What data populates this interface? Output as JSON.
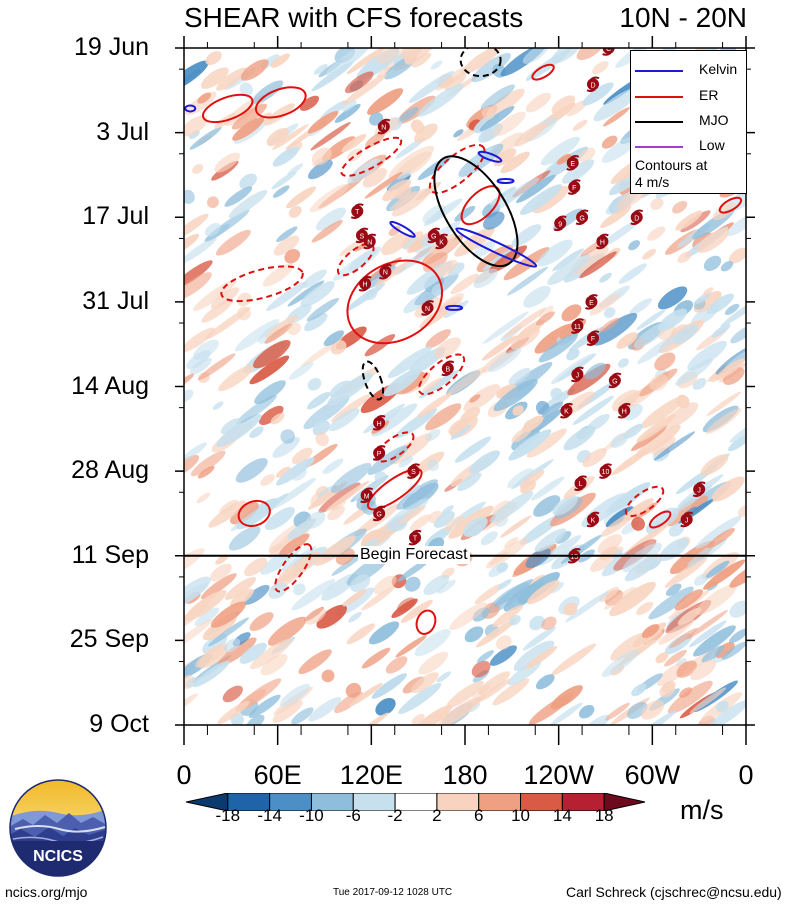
{
  "titles": {
    "left": "SHEAR with CFS forecasts",
    "right": "10N - 20N"
  },
  "chart_data": {
    "type": "heatmap",
    "title": "SHEAR with CFS forecasts",
    "subtitle": "10N - 20N",
    "x_axis": {
      "labels": [
        "0",
        "60E",
        "120E",
        "180",
        "120W",
        "60W",
        "0"
      ],
      "lon_range": [
        0,
        360
      ]
    },
    "y_axis": {
      "labels": [
        "19 Jun",
        "3 Jul",
        "17 Jul",
        "31 Jul",
        "14 Aug",
        "28 Aug",
        "11 Sep",
        "25 Sep",
        "9 Oct"
      ],
      "day_range": [
        0,
        112
      ]
    },
    "forecast_line": {
      "day": 84,
      "label": "Begin Forecast"
    },
    "colorbar": {
      "levels": [
        "-18",
        "-14",
        "-10",
        "-6",
        "-2",
        "2",
        "6",
        "10",
        "14",
        "18"
      ],
      "colors": [
        "#0b3a6e",
        "#1f64a8",
        "#4b8fc6",
        "#8fbedc",
        "#c6e0ee",
        "#ffffff",
        "#f8d4c0",
        "#ef9f82",
        "#d95b46",
        "#b52133",
        "#6d0a1e"
      ],
      "units": "m/s"
    },
    "legend": [
      {
        "name": "Kelvin",
        "color": "#1a1ad8"
      },
      {
        "name": "ER",
        "color": "#e01010"
      },
      {
        "name": "MJO",
        "color": "#000000"
      },
      {
        "name": "Low",
        "color": "#a040c8"
      }
    ],
    "legend_note": [
      "Contours at",
      "4 m/s"
    ],
    "storms": [
      {
        "id": "C",
        "lon": 272,
        "day": 0
      },
      {
        "id": "D",
        "lon": 262,
        "day": 6
      },
      {
        "id": "N",
        "lon": 128,
        "day": 13
      },
      {
        "id": "E",
        "lon": 249,
        "day": 19
      },
      {
        "id": "F",
        "lon": 250,
        "day": 23
      },
      {
        "id": "T",
        "lon": 111,
        "day": 27
      },
      {
        "id": "G",
        "lon": 255,
        "day": 28
      },
      {
        "id": "9",
        "lon": 241,
        "day": 29
      },
      {
        "id": "D",
        "lon": 290,
        "day": 28
      },
      {
        "id": "S",
        "lon": 114,
        "day": 31
      },
      {
        "id": "N",
        "lon": 119,
        "day": 32
      },
      {
        "id": "K",
        "lon": 165,
        "day": 32
      },
      {
        "id": "G",
        "lon": 160,
        "day": 31
      },
      {
        "id": "H",
        "lon": 268,
        "day": 32
      },
      {
        "id": "N",
        "lon": 129,
        "day": 37
      },
      {
        "id": "H",
        "lon": 116,
        "day": 39
      },
      {
        "id": "E",
        "lon": 261,
        "day": 42
      },
      {
        "id": "N",
        "lon": 156,
        "day": 43
      },
      {
        "id": "11",
        "lon": 252,
        "day": 46
      },
      {
        "id": "F",
        "lon": 262,
        "day": 48
      },
      {
        "id": "B",
        "lon": 169,
        "day": 53
      },
      {
        "id": "J",
        "lon": 252,
        "day": 54
      },
      {
        "id": "G",
        "lon": 276,
        "day": 55
      },
      {
        "id": "K",
        "lon": 245,
        "day": 60
      },
      {
        "id": "H",
        "lon": 282,
        "day": 60
      },
      {
        "id": "H",
        "lon": 125,
        "day": 62
      },
      {
        "id": "P",
        "lon": 125,
        "day": 67
      },
      {
        "id": "10",
        "lon": 270,
        "day": 70
      },
      {
        "id": "S",
        "lon": 147,
        "day": 70
      },
      {
        "id": "L",
        "lon": 254,
        "day": 72
      },
      {
        "id": "J",
        "lon": 330,
        "day": 73
      },
      {
        "id": "M",
        "lon": 117,
        "day": 74
      },
      {
        "id": "G",
        "lon": 125,
        "day": 77
      },
      {
        "id": "K",
        "lon": 262,
        "day": 78
      },
      {
        "id": "J",
        "lon": 322,
        "day": 78
      },
      {
        "id": "T",
        "lon": 148,
        "day": 81
      },
      {
        "id": "15",
        "lon": 250,
        "day": 84
      }
    ]
  },
  "logo": {
    "text": "NCICS"
  },
  "footer": {
    "left": "ncics.org/mjo",
    "center": "Tue 2017-09-12 1028 UTC",
    "right": "Carl Schreck (cjschrec@ncsu.edu)"
  },
  "colors": {
    "kelvin": "#1a1ad8",
    "er": "#e01010",
    "mjo": "#000000",
    "low": "#a040c8",
    "storm": "#9a0a14"
  }
}
